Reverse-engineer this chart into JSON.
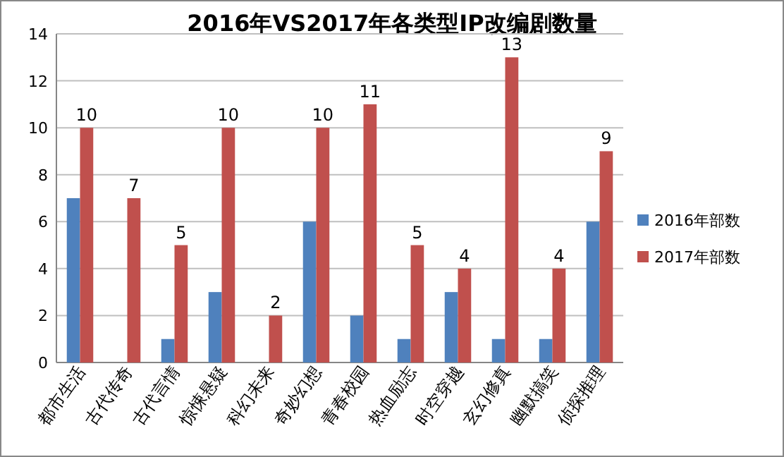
{
  "chart_data": {
    "type": "bar",
    "title": "2016年VS2017年各类型IP改编剧数量",
    "categories": [
      "都市生活",
      "古代传奇",
      "古代言情",
      "惊悚悬疑",
      "科幻未来",
      "奇妙幻想",
      "青春校园",
      "热血励志",
      "时空穿越",
      "玄幻修真",
      "幽默搞笑",
      "侦探推理"
    ],
    "series": [
      {
        "name": "2016年部数",
        "color": "#4f81bd",
        "values": [
          7,
          0,
          1,
          3,
          0,
          6,
          2,
          1,
          3,
          1,
          1,
          6
        ]
      },
      {
        "name": "2017年部数",
        "color": "#c0504d",
        "values": [
          10,
          7,
          5,
          10,
          2,
          10,
          11,
          5,
          4,
          13,
          4,
          9
        ],
        "value_labels": [
          "10",
          "7",
          "5",
          "10",
          "2",
          "10",
          "11",
          "5",
          "4",
          "13",
          "4",
          "9"
        ]
      }
    ],
    "ylim": [
      0,
      14
    ],
    "yticks": [
      0,
      2,
      4,
      6,
      8,
      10,
      12,
      14
    ],
    "grid": "y",
    "legend": "right"
  }
}
